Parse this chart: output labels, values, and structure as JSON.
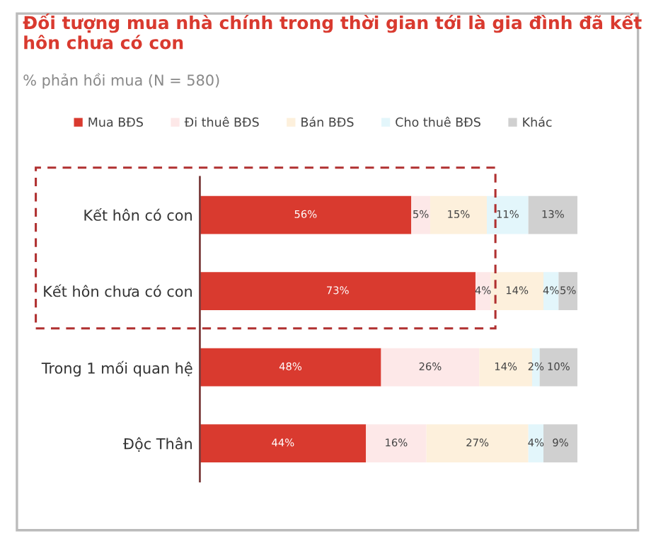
{
  "chart_data": {
    "type": "bar",
    "orientation": "horizontal",
    "stacked": true,
    "title": "Đối tượng mua nhà chính trong thời gian tới là gia đình đã kết hôn chưa có con",
    "subtitle": "% phản hồi mua (N = 580)",
    "categories": [
      "Kết hôn có con",
      "Kết hôn chưa có con",
      "Trong 1 mối quan hệ",
      "Độc Thân"
    ],
    "series": [
      {
        "name": "Mua BĐS",
        "color": "#d93a2f",
        "values": [
          56,
          73,
          48,
          44
        ],
        "value_labels": [
          "56%",
          "73%",
          "48%",
          "44%"
        ]
      },
      {
        "name": "Đi thuê BĐS",
        "color": "#fde8e8",
        "values": [
          5,
          4,
          26,
          16
        ],
        "value_labels": [
          "5%",
          "4%",
          "26%",
          "16%"
        ]
      },
      {
        "name": "Bán BĐS",
        "color": "#fdf0dc",
        "values": [
          15,
          14,
          14,
          27
        ],
        "value_labels": [
          "15%",
          "14%",
          "14%",
          "27%"
        ]
      },
      {
        "name": "Cho thuê BĐS",
        "color": "#e3f6fb",
        "values": [
          11,
          4,
          2,
          4
        ],
        "value_labels": [
          "11%",
          "4%",
          "2%",
          "4%"
        ]
      },
      {
        "name": "Khác",
        "color": "#d0d0d0",
        "values": [
          13,
          5,
          10,
          9
        ],
        "value_labels": [
          "13%",
          "5%",
          "10%",
          "9%"
        ]
      }
    ],
    "tick_labels": "y",
    "legend": "top",
    "grid": false
  }
}
